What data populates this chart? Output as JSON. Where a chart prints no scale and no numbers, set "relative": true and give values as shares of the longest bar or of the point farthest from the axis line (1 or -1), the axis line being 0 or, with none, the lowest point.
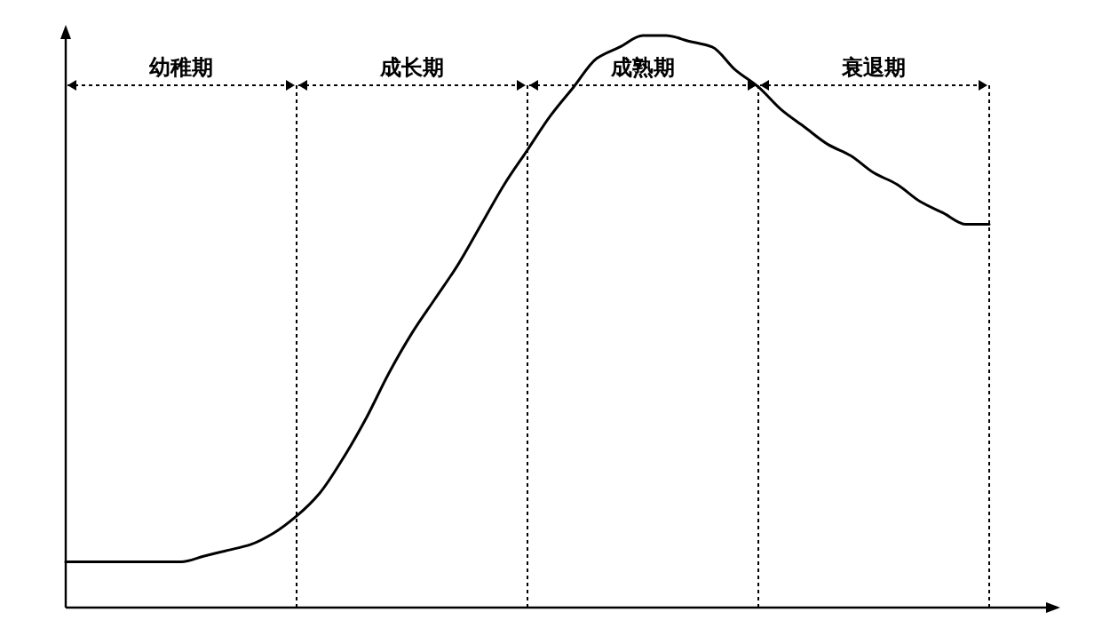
{
  "chart_data": {
    "type": "line",
    "relative": true,
    "categories": [
      null,
      null,
      null,
      null,
      null,
      null,
      null,
      null,
      null,
      null,
      null,
      null,
      null,
      null,
      null,
      null,
      null,
      null,
      null,
      null,
      null,
      null,
      null,
      null,
      null,
      null,
      null,
      null,
      null,
      null,
      null,
      null,
      null,
      null,
      null,
      null,
      null,
      null,
      null,
      null,
      null
    ],
    "series": [
      {
        "color": "#000000",
        "values": [
          0.08,
          0.08,
          0.08,
          0.08,
          0.08,
          0.08,
          0.09,
          0.1,
          0.11,
          0.13,
          0.16,
          0.2,
          0.26,
          0.33,
          0.41,
          0.48,
          0.54,
          0.6,
          0.67,
          0.74,
          0.8,
          0.86,
          0.91,
          0.96,
          0.98,
          1.0,
          1.0,
          0.99,
          0.98,
          0.94,
          0.91,
          0.87,
          0.84,
          0.81,
          0.79,
          0.76,
          0.74,
          0.71,
          0.69,
          0.67,
          0.67
        ]
      }
    ],
    "annotations": [
      "幼稚期",
      "成长期",
      "成熟期",
      "衰退期"
    ],
    "grid": "x"
  }
}
